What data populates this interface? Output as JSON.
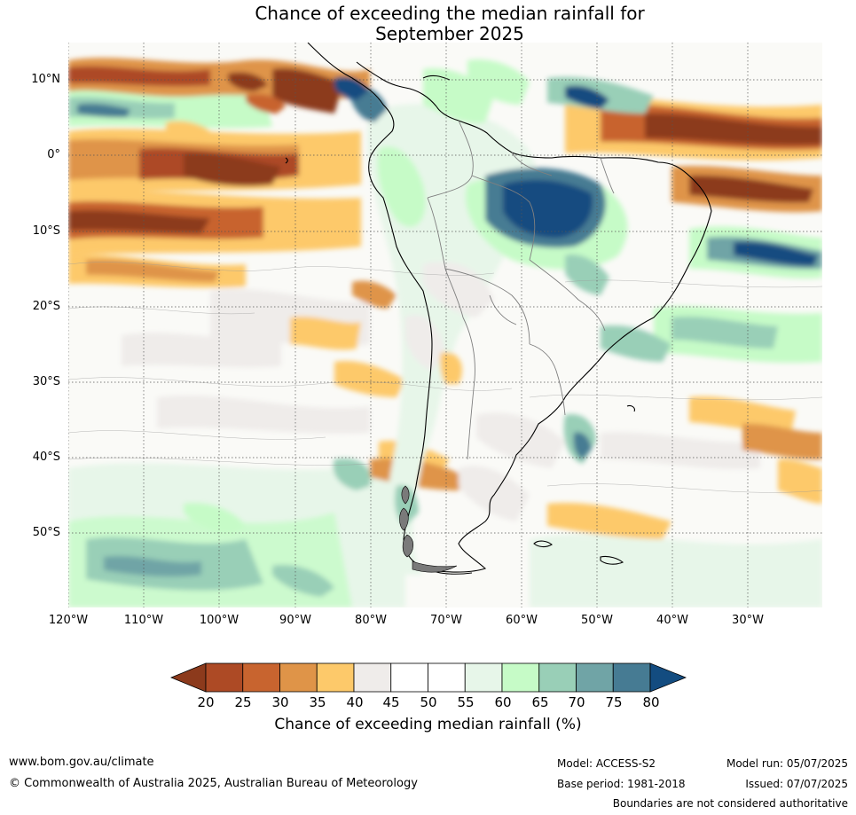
{
  "title": {
    "line1": "Chance of exceeding the median rainfall for",
    "line2": "September 2025"
  },
  "map": {
    "latitude_labels": [
      "10°N",
      "0°",
      "10°S",
      "20°S",
      "30°S",
      "40°S",
      "50°S"
    ],
    "longitude_labels": [
      "120°W",
      "110°W",
      "100°W",
      "90°W",
      "80°W",
      "70°W",
      "60°W",
      "50°W",
      "40°W",
      "30°W"
    ],
    "grid": "dotted",
    "region": "South America"
  },
  "colorbar": {
    "ticks": [
      "20",
      "25",
      "30",
      "35",
      "40",
      "45",
      "50",
      "55",
      "60",
      "65",
      "70",
      "75",
      "80"
    ],
    "colors": [
      "#8c3a1c",
      "#ad4a25",
      "#c8642f",
      "#df9448",
      "#fdc96a",
      "#efecea",
      "#ffffff",
      "#ffffff",
      "#e7f6e9",
      "#c6fbc7",
      "#99cfb7",
      "#70a4a6",
      "#467b93",
      "#134c80"
    ],
    "label": "Chance of exceeding median rainfall (%)"
  },
  "footer": {
    "website": "www.bom.gov.au/climate",
    "copyright": "© Commonwealth of Australia 2025, Australian Bureau of Meteorology",
    "model": "Model: ACCESS-S2",
    "base_period": "Base period: 1981-2018",
    "model_run": "Model run: 05/07/2025",
    "issued": "Issued: 07/07/2025",
    "disclaimer": "Boundaries are not considered authoritative"
  }
}
